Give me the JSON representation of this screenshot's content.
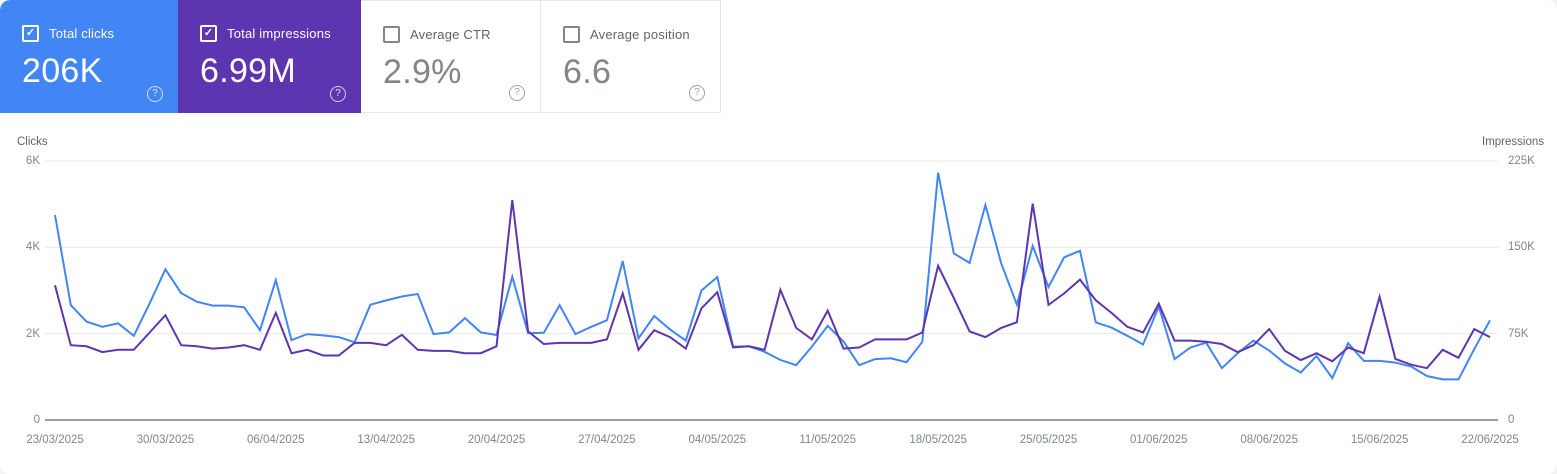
{
  "cards": [
    {
      "label": "Total clicks",
      "value": "206K",
      "checked": true,
      "color": "#4285f4"
    },
    {
      "label": "Total impressions",
      "value": "6.99M",
      "checked": true,
      "color": "#5e35b1"
    },
    {
      "label": "Average CTR",
      "value": "2.9%",
      "checked": false
    },
    {
      "label": "Average position",
      "value": "6.6",
      "checked": false
    }
  ],
  "help_icon_glyph": "?",
  "checkmark_glyph": "✓",
  "chart_data": {
    "type": "line",
    "grid": "horizontal-only",
    "left_axis": {
      "label": "Clicks",
      "ticks": [
        "6K",
        "4K",
        "2K",
        "0"
      ],
      "max": 6000
    },
    "right_axis": {
      "label": "Impressions",
      "ticks": [
        "225K",
        "150K",
        "75K",
        "0"
      ],
      "max": 225000
    },
    "x_tick_labels": [
      "23/03/2025",
      "30/03/2025",
      "06/04/2025",
      "13/04/2025",
      "20/04/2025",
      "27/04/2025",
      "04/05/2025",
      "11/05/2025",
      "18/05/2025",
      "25/05/2025",
      "01/06/2025",
      "08/06/2025",
      "15/06/2025",
      "22/06/2025"
    ],
    "x_unit": "day",
    "series": [
      {
        "name": "Total clicks",
        "axis": "left",
        "color": "#4285f4",
        "values": [
          4750,
          2660,
          2280,
          2160,
          2240,
          1950,
          2700,
          3490,
          2940,
          2740,
          2650,
          2650,
          2610,
          2080,
          3240,
          1850,
          1990,
          1960,
          1920,
          1800,
          2670,
          2770,
          2860,
          2920,
          1990,
          2030,
          2360,
          2030,
          1970,
          3320,
          2010,
          2020,
          2660,
          1990,
          2160,
          2310,
          3680,
          1890,
          2410,
          2100,
          1840,
          3000,
          3310,
          1700,
          1710,
          1580,
          1390,
          1270,
          1700,
          2180,
          1820,
          1270,
          1410,
          1430,
          1340,
          1810,
          5730,
          3860,
          3640,
          4980,
          3630,
          2670,
          4030,
          3080,
          3770,
          3920,
          2260,
          2140,
          1950,
          1750,
          2630,
          1410,
          1680,
          1790,
          1200,
          1550,
          1840,
          1610,
          1310,
          1100,
          1480,
          970,
          1780,
          1370,
          1370,
          1330,
          1240,
          1020,
          940,
          940,
          1640,
          2310
        ]
      },
      {
        "name": "Total impressions",
        "axis": "right",
        "color": "#5e35b1",
        "values": [
          117000,
          65000,
          64000,
          59000,
          61000,
          61000,
          76000,
          91000,
          65000,
          64000,
          62000,
          63000,
          65000,
          61000,
          93000,
          58000,
          61000,
          56000,
          56000,
          67000,
          67000,
          65000,
          74000,
          61000,
          60000,
          60000,
          58000,
          58000,
          64000,
          191000,
          77000,
          66000,
          67000,
          67000,
          67000,
          70000,
          110000,
          61000,
          78000,
          72000,
          62000,
          97000,
          111000,
          63000,
          64000,
          61000,
          113000,
          80000,
          70000,
          95000,
          62000,
          63000,
          70000,
          70000,
          70000,
          76000,
          134000,
          106000,
          77000,
          72000,
          80000,
          85000,
          188000,
          100000,
          110000,
          122000,
          104000,
          93000,
          81000,
          76000,
          101000,
          69000,
          69000,
          68000,
          66000,
          59000,
          65000,
          79000,
          60000,
          52000,
          58000,
          51000,
          63000,
          58000,
          107000,
          53000,
          48000,
          45000,
          61000,
          54000,
          79000,
          72000
        ]
      }
    ]
  }
}
